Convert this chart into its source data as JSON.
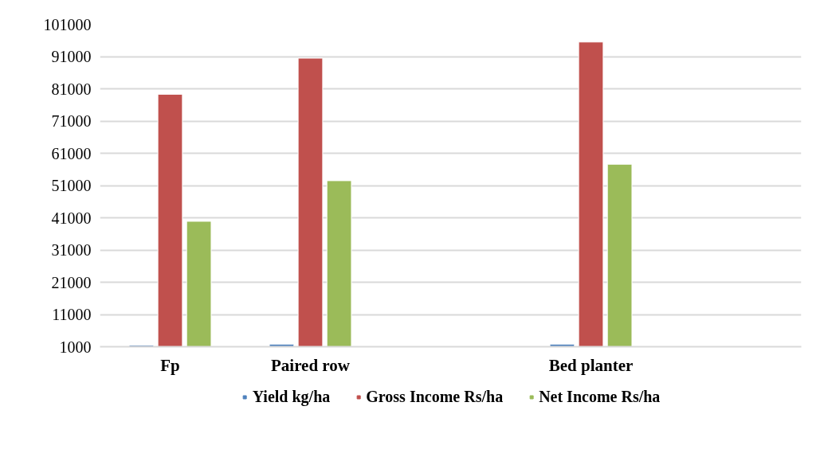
{
  "chart_data": {
    "type": "bar",
    "categories": [
      "Fp",
      "Paired row",
      null,
      "Bed planter",
      null
    ],
    "series": [
      {
        "name": "Yield kg/ha",
        "color": "#4f81bd",
        "values": [
          1500,
          1800,
          null,
          1800,
          null
        ]
      },
      {
        "name": "Gross Income Rs/ha",
        "color": "#c0504d",
        "values": [
          79300,
          90500,
          null,
          95500,
          null
        ]
      },
      {
        "name": "Net Income Rs/ha",
        "color": "#9bbb59",
        "values": [
          39900,
          52500,
          null,
          57600,
          null
        ]
      }
    ],
    "ylim": [
      1000,
      101000
    ],
    "yticks": [
      1000,
      11000,
      21000,
      31000,
      41000,
      51000,
      61000,
      71000,
      81000,
      91000,
      101000
    ],
    "grid": "y",
    "legend": "bottom"
  }
}
